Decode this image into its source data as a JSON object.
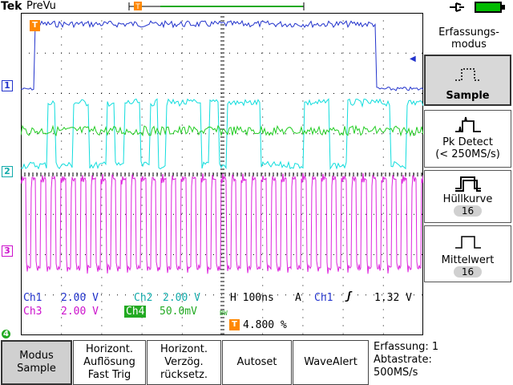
{
  "header": {
    "brand": "Tek",
    "mode": "PreVu"
  },
  "channels": {
    "ch1": {
      "label": "Ch1",
      "scale": "2.00 V",
      "marker": "1",
      "color": "#2233cc"
    },
    "ch2": {
      "label": "Ch2",
      "scale": "2.00 V",
      "marker": "2",
      "color": "#11aaaa"
    },
    "ch3": {
      "label": "Ch3",
      "scale": "2.00 V",
      "marker": "3",
      "color": "#cc11cc"
    },
    "ch4": {
      "label": "Ch4",
      "scale": "50.0mV",
      "marker": "4",
      "color": "#22aa22",
      "bw_limit": "BW"
    }
  },
  "timebase": {
    "label": "H",
    "value": "100ns"
  },
  "trigger": {
    "mode": "A",
    "source": "Ch1",
    "slope": "ʃ",
    "level": "1.32 V",
    "marker": "T",
    "position": "4.800 %"
  },
  "menu": {
    "title": "Erfassungs-\nmodus",
    "items": [
      {
        "label": "Sample",
        "selected": true
      },
      {
        "label": "Pk Detect",
        "sub": "(< 250MS/s)"
      },
      {
        "label": "Hüllkurve",
        "count": "16"
      },
      {
        "label": "Mittelwert",
        "count": "16"
      }
    ]
  },
  "softkeys": [
    {
      "line1": "Modus",
      "line2": "Sample",
      "line3": ""
    },
    {
      "line1": "Horizont.",
      "line2": "Auflösung",
      "line3": "Fast Trig"
    },
    {
      "line1": "Horizont.",
      "line2": "Verzög.",
      "line3": "rücksetz."
    },
    {
      "line1": "Autoset",
      "line2": "",
      "line3": ""
    },
    {
      "line1": "WaveAlert",
      "line2": "",
      "line3": ""
    }
  ],
  "acquisition": {
    "count_label": "Erfassung: 1",
    "rate_label": "Abtastrate:",
    "rate_value": "500MS/s"
  },
  "colors": {
    "ch1": "#2233cc",
    "ch2": "#11aaaa",
    "ch3": "#cc11cc",
    "ch4": "#22aa22",
    "trigger": "#ff8800",
    "battery": "#00bb00"
  },
  "icons": {
    "power": "power-plug-icon",
    "battery": "battery-icon"
  }
}
